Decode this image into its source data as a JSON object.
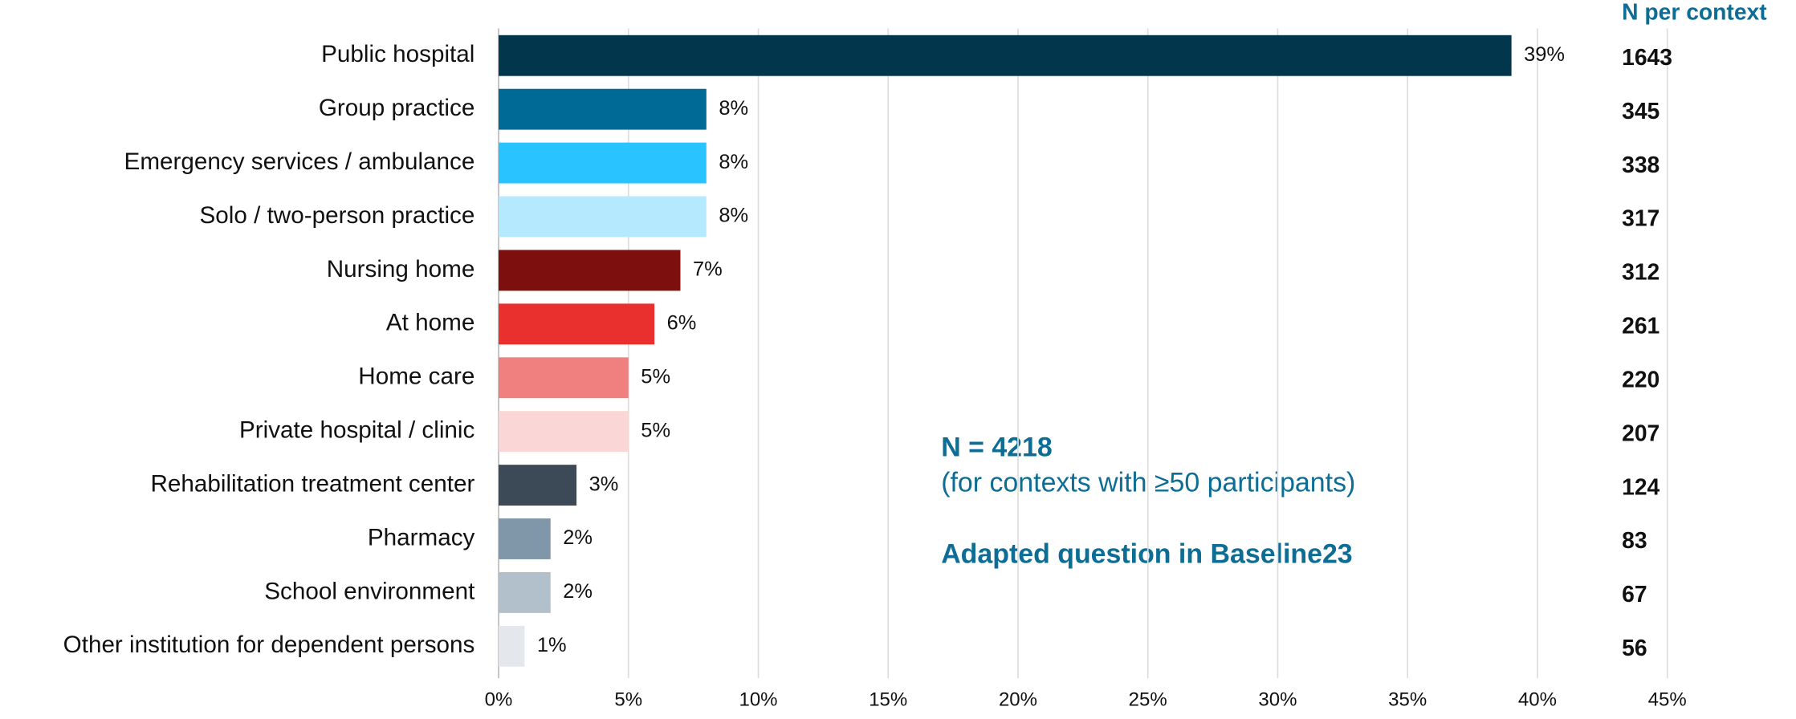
{
  "chart_data": {
    "type": "bar",
    "orientation": "horizontal",
    "categories": [
      "Public hospital",
      "Group practice",
      "Emergency services / ambulance",
      "Solo / two-person practice",
      "Nursing home",
      "At home",
      "Home care",
      "Private hospital / clinic",
      "Rehabilitation treatment center",
      "Pharmacy",
      "School environment",
      "Other institution for dependent persons"
    ],
    "values": [
      39,
      8,
      8,
      8,
      7,
      6,
      5,
      5,
      3,
      2,
      2,
      1
    ],
    "value_labels": [
      "39%",
      "8%",
      "8%",
      "8%",
      "7%",
      "6%",
      "5%",
      "5%",
      "3%",
      "2%",
      "2%",
      "1%"
    ],
    "colors": [
      "#02364c",
      "#006a97",
      "#29c3ff",
      "#b5e9fd",
      "#7e0f0f",
      "#ea2f2f",
      "#f08080",
      "#fbd6d7",
      "#3c4a58",
      "#8097aa",
      "#b2c0cc",
      "#e4e8ec"
    ],
    "xlim": [
      0,
      45
    ],
    "xticks": [
      {
        "value": 0,
        "label": "0%"
      },
      {
        "value": 5,
        "label": "5%"
      },
      {
        "value": 10,
        "label": "10%"
      },
      {
        "value": 15,
        "label": "15%"
      },
      {
        "value": 20,
        "label": "20%"
      },
      {
        "value": 25,
        "label": "25%"
      },
      {
        "value": 30,
        "label": "30%"
      },
      {
        "value": 35,
        "label": "35%"
      },
      {
        "value": 40,
        "label": "40%"
      },
      {
        "value": 45,
        "label": "45%"
      }
    ],
    "grid": true,
    "n_header": "N per context",
    "n_values": [
      1643,
      345,
      338,
      317,
      312,
      261,
      220,
      207,
      124,
      83,
      67,
      56
    ],
    "annotations": [
      "N = 4218",
      "(for contexts with ≥50 participants)",
      "Adapted question in Baseline23"
    ]
  }
}
